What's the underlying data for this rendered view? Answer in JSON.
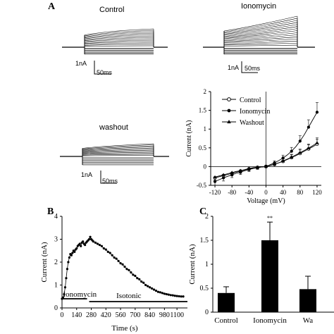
{
  "panels": {
    "a_letter": "A",
    "b_letter": "B",
    "c_letter": "C"
  },
  "traces": {
    "control_label": "Control",
    "ionomycin_label": "Ionomycin",
    "washout_label": "washout",
    "scale_current": "1nA",
    "scale_time": "50ms"
  },
  "chart_data": [
    {
      "type": "line",
      "panel": "A",
      "xlabel": "Voltage (mV)",
      "ylabel": "Current (nA)",
      "xlim": [
        -130,
        130
      ],
      "ylim": [
        -0.5,
        2
      ],
      "xticks": [
        -120,
        -80,
        -40,
        0,
        40,
        80,
        120
      ],
      "yticks": [
        -0.5,
        0,
        0.5,
        1,
        1.5,
        2
      ],
      "legend_position": "top-left",
      "x": [
        -120,
        -110,
        -100,
        -90,
        -80,
        -70,
        -60,
        -50,
        -40,
        -30,
        -20,
        -10,
        0,
        10,
        20,
        30,
        40,
        50,
        60,
        70,
        80,
        90,
        100,
        110,
        120
      ],
      "series": [
        {
          "name": "Control",
          "marker": "open-circle",
          "values": [
            -0.3,
            -0.27,
            -0.24,
            -0.21,
            -0.18,
            -0.15,
            -0.12,
            -0.09,
            -0.06,
            -0.04,
            -0.02,
            -0.01,
            0.0,
            0.03,
            0.06,
            0.1,
            0.14,
            0.19,
            0.24,
            0.29,
            0.35,
            0.41,
            0.47,
            0.53,
            0.6
          ]
        },
        {
          "name": "Ionomycin",
          "marker": "filled-circle",
          "values": [
            -0.4,
            -0.35,
            -0.3,
            -0.26,
            -0.22,
            -0.18,
            -0.15,
            -0.11,
            -0.08,
            -0.05,
            -0.03,
            -0.01,
            0.0,
            0.05,
            0.1,
            0.16,
            0.23,
            0.31,
            0.41,
            0.53,
            0.68,
            0.85,
            1.05,
            1.25,
            1.45
          ]
        },
        {
          "name": "Washout",
          "marker": "filled-triangle",
          "values": [
            -0.28,
            -0.25,
            -0.22,
            -0.19,
            -0.16,
            -0.13,
            -0.11,
            -0.08,
            -0.05,
            -0.03,
            -0.02,
            -0.01,
            0.0,
            0.03,
            0.06,
            0.1,
            0.15,
            0.2,
            0.25,
            0.31,
            0.37,
            0.43,
            0.49,
            0.56,
            0.63
          ]
        }
      ]
    },
    {
      "type": "scatter",
      "panel": "B",
      "xlabel": "Time (s)",
      "ylabel": "Current (nA)",
      "xlim": [
        0,
        1200
      ],
      "ylim": [
        0,
        4
      ],
      "xticks": [
        0,
        140,
        280,
        420,
        560,
        700,
        840,
        980,
        1100
      ],
      "xtick_labels": [
        "0",
        "140",
        "280",
        "420",
        "560",
        "700",
        "840",
        "980",
        "1100"
      ],
      "yticks": [
        0,
        1,
        2,
        3,
        4
      ],
      "annotations": [
        "Ionomycin",
        "Isotonic"
      ],
      "bars": [
        {
          "label": "Ionomycin",
          "start": 0,
          "end": 240
        },
        {
          "label": "Isotonic",
          "start": 260,
          "end": 1200
        }
      ],
      "x": [
        0,
        10,
        20,
        30,
        40,
        50,
        60,
        70,
        80,
        90,
        100,
        110,
        120,
        130,
        140,
        150,
        160,
        170,
        180,
        190,
        200,
        210,
        220,
        230,
        240,
        250,
        260,
        270,
        280,
        290,
        300,
        320,
        340,
        360,
        380,
        400,
        420,
        440,
        460,
        480,
        500,
        520,
        540,
        560,
        580,
        600,
        620,
        640,
        660,
        680,
        700,
        720,
        740,
        760,
        780,
        800,
        820,
        840,
        860,
        880,
        900,
        920,
        940,
        960,
        980,
        1000,
        1020,
        1040,
        1060,
        1080,
        1100,
        1120,
        1140,
        1160
      ],
      "values": [
        0.4,
        0.45,
        0.6,
        0.9,
        1.3,
        1.7,
        2.0,
        2.2,
        2.35,
        2.3,
        2.4,
        2.5,
        2.45,
        2.55,
        2.6,
        2.7,
        2.75,
        2.8,
        2.7,
        2.85,
        2.9,
        2.8,
        2.75,
        2.85,
        2.9,
        2.95,
        3.0,
        3.1,
        3.0,
        2.95,
        2.9,
        2.85,
        2.8,
        2.75,
        2.7,
        2.6,
        2.55,
        2.45,
        2.4,
        2.3,
        2.2,
        2.15,
        2.05,
        1.95,
        1.9,
        1.8,
        1.7,
        1.65,
        1.55,
        1.45,
        1.4,
        1.3,
        1.25,
        1.15,
        1.1,
        1.0,
        0.95,
        0.9,
        0.85,
        0.8,
        0.75,
        0.7,
        0.68,
        0.65,
        0.62,
        0.6,
        0.58,
        0.56,
        0.55,
        0.53,
        0.52,
        0.51,
        0.5,
        0.5
      ]
    },
    {
      "type": "bar",
      "panel": "C",
      "ylabel": "Current (nA)",
      "ylim": [
        0,
        2
      ],
      "yticks": [
        0,
        0.5,
        1,
        1.5,
        2
      ],
      "categories": [
        "Control",
        "Ionomycin",
        "Wa"
      ],
      "values": [
        0.4,
        1.5,
        0.48
      ],
      "errors": [
        0.13,
        0.38,
        0.27
      ],
      "significance": [
        "",
        "**",
        ""
      ]
    }
  ]
}
